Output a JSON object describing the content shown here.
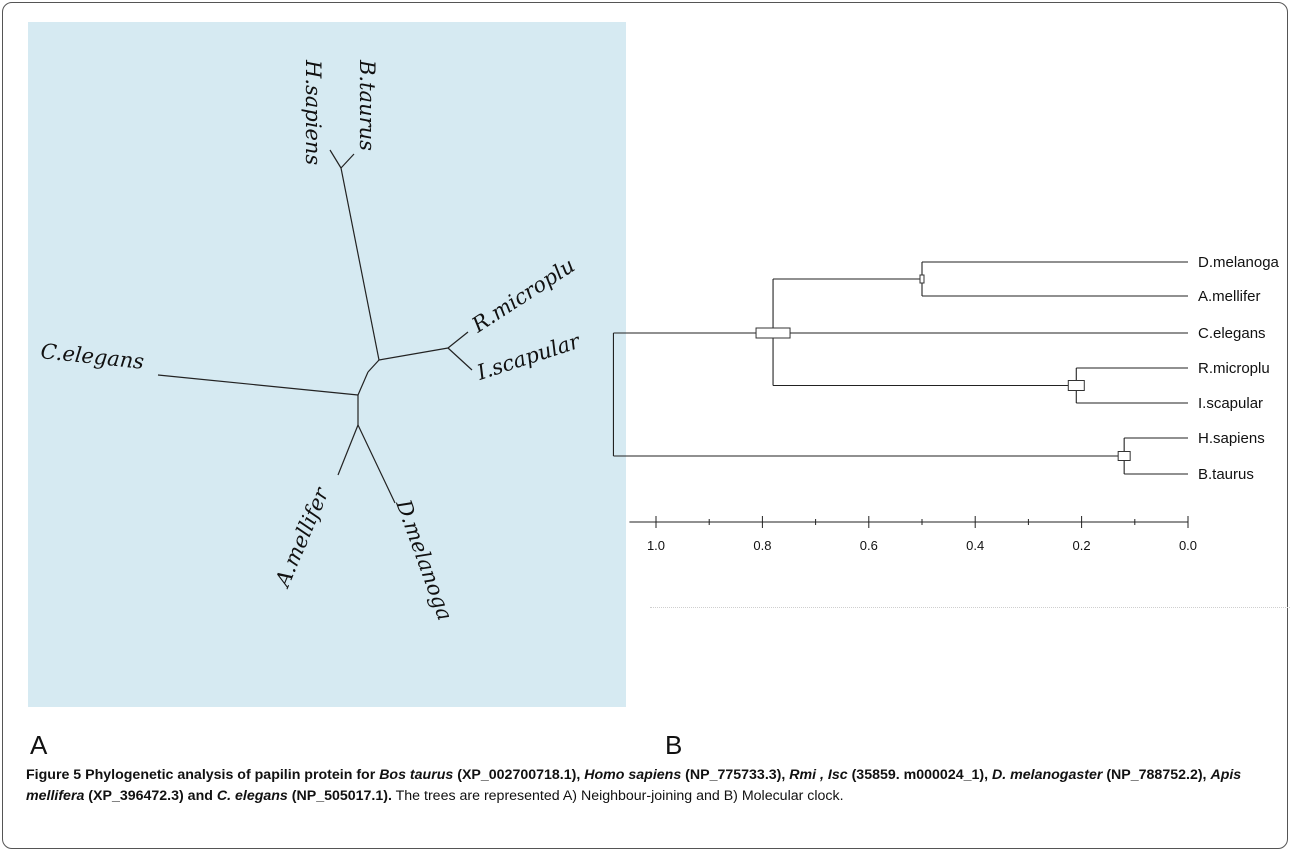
{
  "panel_a": {
    "letter": "A",
    "tree_type": "unrooted",
    "leaves": [
      "H.sapiens",
      "B.taurus",
      "R.microplu",
      "I.scapular",
      "C.elegans",
      "A.mellifer",
      "D.melanoga"
    ]
  },
  "panel_b": {
    "letter": "B",
    "tree_type": "rooted",
    "leaves": [
      "D.melanoga",
      "A.mellifer",
      "C.elegans",
      "R.microplu",
      "I.scapular",
      "H.sapiens",
      "B.taurus"
    ],
    "axis": {
      "ticks": [
        "1.0",
        "0.8",
        "0.6",
        "0.4",
        "0.2",
        "0.0"
      ],
      "range": [
        1.0,
        0.0
      ]
    }
  },
  "caption": {
    "figure_label": "Figure 5",
    "title_parts": [
      " Phylogenetic analysis of papilin protein for ",
      "Bos taurus",
      " (XP_002700718.1), ",
      "Homo sapiens",
      " (NP_775733.3), ",
      "Rmi , Isc",
      " (35859. m000024_1), ",
      "D. melanogaster",
      " (NP_788752.2), ",
      "Apis mellifera",
      " (XP_396472.3) and ",
      "C. elegans",
      " (NP_505017.1)."
    ],
    "body": " The trees are represented A) Neighbour-joining and B) Molecular clock."
  }
}
